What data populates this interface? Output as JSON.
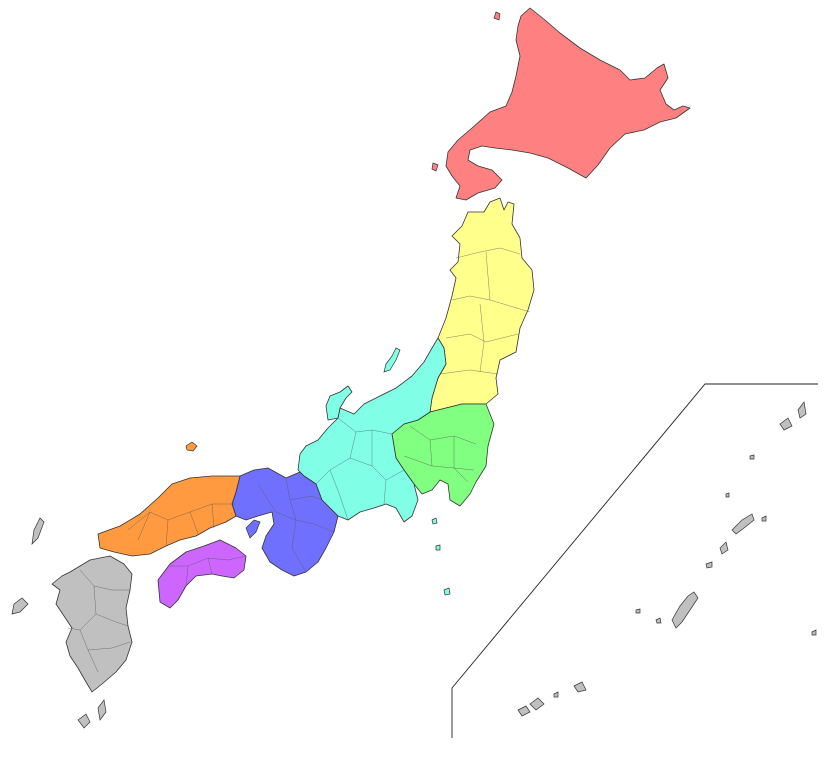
{
  "map": {
    "colors": {
      "hokkaido": "#ff8080",
      "tohoku": "#ffff8c",
      "kanto": "#80ff80",
      "chubu": "#80ffe6",
      "kansai": "#7070ff",
      "chugoku": "#ff9a40",
      "shikoku": "#cc66ff",
      "kyushu": "#c0c0c0",
      "background": "#ffffff",
      "border": "#333333"
    },
    "regions": [
      {
        "id": "hokkaido"
      },
      {
        "id": "tohoku"
      },
      {
        "id": "kanto"
      },
      {
        "id": "chubu"
      },
      {
        "id": "kansai"
      },
      {
        "id": "chugoku"
      },
      {
        "id": "shikoku"
      },
      {
        "id": "kyushu"
      }
    ]
  }
}
